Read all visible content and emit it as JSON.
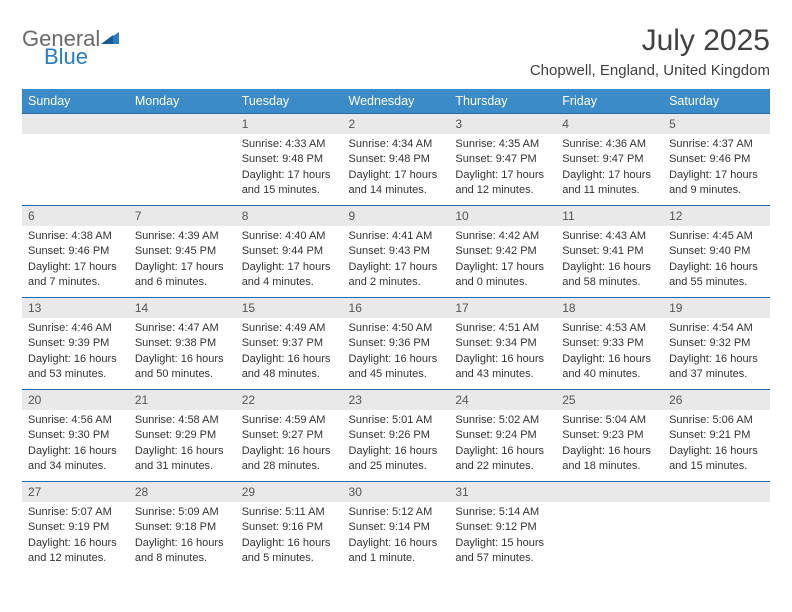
{
  "logo": {
    "word1": "General",
    "word2": "Blue"
  },
  "title": "July 2025",
  "location": "Chopwell, England, United Kingdom",
  "colors": {
    "header_bg": "#3b8bc8",
    "header_text": "#ffffff",
    "row_border": "#2a6aa3",
    "daynum_bg": "#e9e9e9",
    "body_text": "#333333",
    "title_text": "#414141",
    "logo_gray": "#6a6a6a",
    "logo_blue": "#2a7bbf"
  },
  "weekdays": [
    "Sunday",
    "Monday",
    "Tuesday",
    "Wednesday",
    "Thursday",
    "Friday",
    "Saturday"
  ],
  "layout": {
    "first_weekday_index": 2,
    "days_in_month": 31
  },
  "days": {
    "1": {
      "sunrise": "4:33 AM",
      "sunset": "9:48 PM",
      "daylight": "17 hours and 15 minutes."
    },
    "2": {
      "sunrise": "4:34 AM",
      "sunset": "9:48 PM",
      "daylight": "17 hours and 14 minutes."
    },
    "3": {
      "sunrise": "4:35 AM",
      "sunset": "9:47 PM",
      "daylight": "17 hours and 12 minutes."
    },
    "4": {
      "sunrise": "4:36 AM",
      "sunset": "9:47 PM",
      "daylight": "17 hours and 11 minutes."
    },
    "5": {
      "sunrise": "4:37 AM",
      "sunset": "9:46 PM",
      "daylight": "17 hours and 9 minutes."
    },
    "6": {
      "sunrise": "4:38 AM",
      "sunset": "9:46 PM",
      "daylight": "17 hours and 7 minutes."
    },
    "7": {
      "sunrise": "4:39 AM",
      "sunset": "9:45 PM",
      "daylight": "17 hours and 6 minutes."
    },
    "8": {
      "sunrise": "4:40 AM",
      "sunset": "9:44 PM",
      "daylight": "17 hours and 4 minutes."
    },
    "9": {
      "sunrise": "4:41 AM",
      "sunset": "9:43 PM",
      "daylight": "17 hours and 2 minutes."
    },
    "10": {
      "sunrise": "4:42 AM",
      "sunset": "9:42 PM",
      "daylight": "17 hours and 0 minutes."
    },
    "11": {
      "sunrise": "4:43 AM",
      "sunset": "9:41 PM",
      "daylight": "16 hours and 58 minutes."
    },
    "12": {
      "sunrise": "4:45 AM",
      "sunset": "9:40 PM",
      "daylight": "16 hours and 55 minutes."
    },
    "13": {
      "sunrise": "4:46 AM",
      "sunset": "9:39 PM",
      "daylight": "16 hours and 53 minutes."
    },
    "14": {
      "sunrise": "4:47 AM",
      "sunset": "9:38 PM",
      "daylight": "16 hours and 50 minutes."
    },
    "15": {
      "sunrise": "4:49 AM",
      "sunset": "9:37 PM",
      "daylight": "16 hours and 48 minutes."
    },
    "16": {
      "sunrise": "4:50 AM",
      "sunset": "9:36 PM",
      "daylight": "16 hours and 45 minutes."
    },
    "17": {
      "sunrise": "4:51 AM",
      "sunset": "9:34 PM",
      "daylight": "16 hours and 43 minutes."
    },
    "18": {
      "sunrise": "4:53 AM",
      "sunset": "9:33 PM",
      "daylight": "16 hours and 40 minutes."
    },
    "19": {
      "sunrise": "4:54 AM",
      "sunset": "9:32 PM",
      "daylight": "16 hours and 37 minutes."
    },
    "20": {
      "sunrise": "4:56 AM",
      "sunset": "9:30 PM",
      "daylight": "16 hours and 34 minutes."
    },
    "21": {
      "sunrise": "4:58 AM",
      "sunset": "9:29 PM",
      "daylight": "16 hours and 31 minutes."
    },
    "22": {
      "sunrise": "4:59 AM",
      "sunset": "9:27 PM",
      "daylight": "16 hours and 28 minutes."
    },
    "23": {
      "sunrise": "5:01 AM",
      "sunset": "9:26 PM",
      "daylight": "16 hours and 25 minutes."
    },
    "24": {
      "sunrise": "5:02 AM",
      "sunset": "9:24 PM",
      "daylight": "16 hours and 22 minutes."
    },
    "25": {
      "sunrise": "5:04 AM",
      "sunset": "9:23 PM",
      "daylight": "16 hours and 18 minutes."
    },
    "26": {
      "sunrise": "5:06 AM",
      "sunset": "9:21 PM",
      "daylight": "16 hours and 15 minutes."
    },
    "27": {
      "sunrise": "5:07 AM",
      "sunset": "9:19 PM",
      "daylight": "16 hours and 12 minutes."
    },
    "28": {
      "sunrise": "5:09 AM",
      "sunset": "9:18 PM",
      "daylight": "16 hours and 8 minutes."
    },
    "29": {
      "sunrise": "5:11 AM",
      "sunset": "9:16 PM",
      "daylight": "16 hours and 5 minutes."
    },
    "30": {
      "sunrise": "5:12 AM",
      "sunset": "9:14 PM",
      "daylight": "16 hours and 1 minute."
    },
    "31": {
      "sunrise": "5:14 AM",
      "sunset": "9:12 PM",
      "daylight": "15 hours and 57 minutes."
    }
  },
  "labels": {
    "sunrise": "Sunrise:",
    "sunset": "Sunset:",
    "daylight": "Daylight:"
  }
}
